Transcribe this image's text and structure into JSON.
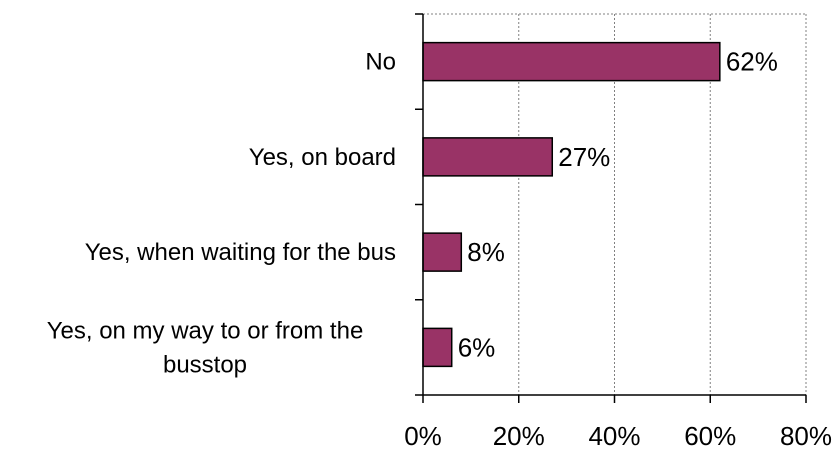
{
  "chart_data": {
    "type": "bar",
    "orientation": "horizontal",
    "categories": [
      [
        "No"
      ],
      [
        "Yes, on board"
      ],
      [
        "Yes, when waiting for the bus"
      ],
      [
        "Yes, on my way to or from the",
        "busstop"
      ]
    ],
    "values": [
      62,
      27,
      8,
      6
    ],
    "data_labels": [
      "62%",
      "27%",
      "8%",
      "6%"
    ],
    "title": "",
    "xlabel": "",
    "ylabel": "",
    "xlim": [
      0,
      80
    ],
    "x_ticks": [
      0,
      20,
      40,
      60,
      80
    ],
    "x_tick_labels": [
      "0%",
      "20%",
      "40%",
      "60%",
      "80%"
    ],
    "grid": "vertical dashed",
    "legend": "none",
    "colors": {
      "bar_fill": "#993366",
      "bar_stroke": "#000000",
      "grid": "#808080",
      "axis": "#000000"
    }
  }
}
